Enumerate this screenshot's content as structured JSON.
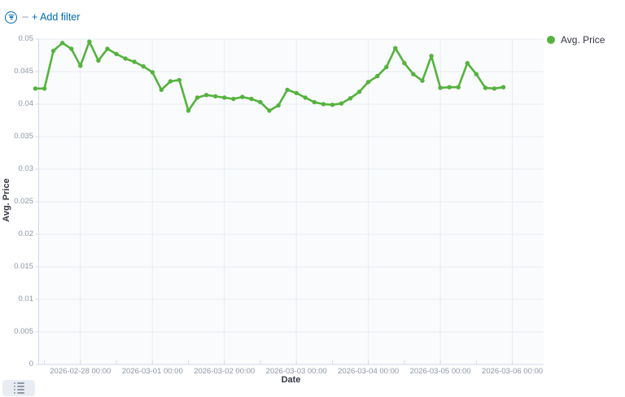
{
  "filter_bar": {
    "add_filter_label": "+ Add filter"
  },
  "legend": {
    "items": [
      {
        "label": "Avg. Price",
        "color": "#54b33d"
      }
    ]
  },
  "colors": {
    "accent_blue": "#006BB4",
    "series_green": "#54b33d",
    "gridline": "#e8ecf1",
    "axis_line": "#d3dae6",
    "tick_text": "#8c96a6",
    "title_text": "#343741"
  },
  "chart_data": {
    "type": "line",
    "title": "",
    "xlabel": "Date",
    "ylabel": "Avg. Price",
    "ylim": [
      0,
      0.05
    ],
    "grid": true,
    "legend_position": "top-right",
    "x_tick_labels": [
      "2026-02-28 00:00",
      "2026-03-01 00:00",
      "2026-03-02 00:00",
      "2026-03-03 00:00",
      "2026-03-04 00:00",
      "2026-03-05 00:00",
      "2026-03-06 00:00"
    ],
    "y_tick_labels": [
      "0",
      "0.005",
      "0.01",
      "0.015",
      "0.02",
      "0.025",
      "0.03",
      "0.035",
      "0.04",
      "0.045",
      "0.05"
    ],
    "series": [
      {
        "name": "Avg. Price",
        "color": "#54b33d",
        "x_start": "2026-02-27 09:00",
        "x_interval_hours": 3,
        "values": [
          0.0424,
          0.0424,
          0.0482,
          0.0494,
          0.0485,
          0.0459,
          0.0496,
          0.0467,
          0.0485,
          0.0477,
          0.047,
          0.0465,
          0.0458,
          0.0449,
          0.0422,
          0.0435,
          0.0437,
          0.039,
          0.041,
          0.0414,
          0.0412,
          0.041,
          0.0408,
          0.0411,
          0.0408,
          0.0403,
          0.039,
          0.0398,
          0.0422,
          0.0417,
          0.041,
          0.0403,
          0.04,
          0.0399,
          0.0401,
          0.0409,
          0.0419,
          0.0434,
          0.0443,
          0.0457,
          0.0486,
          0.0463,
          0.0446,
          0.0436,
          0.0474,
          0.0425,
          0.0426,
          0.0426,
          0.0463,
          0.0446,
          0.0425,
          0.0424,
          0.0426
        ]
      }
    ]
  }
}
